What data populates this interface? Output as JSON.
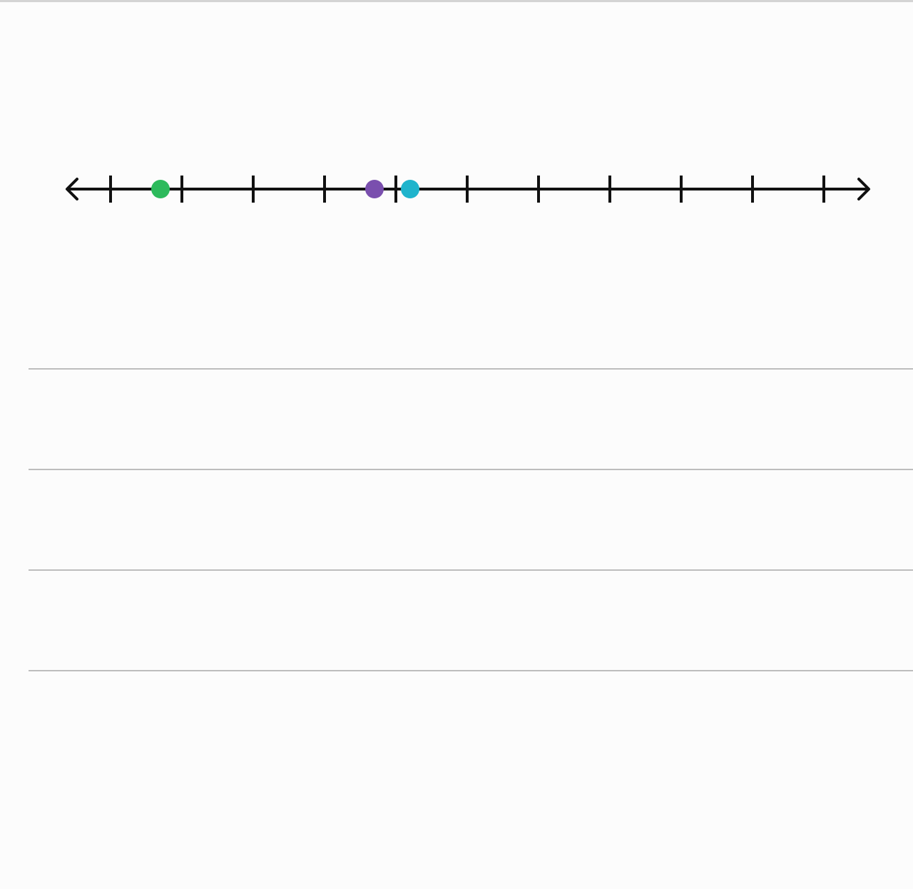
{
  "number_line": {
    "tick_count": 11,
    "tick_spacing_units": 1,
    "axis_color": "#111111",
    "has_left_arrow": true,
    "has_right_arrow": true,
    "tick_labels_visible": false
  },
  "points": [
    {
      "name": "green-point",
      "color": "#2dba5c",
      "position_in_ticks": 0.7
    },
    {
      "name": "purple-point",
      "color": "#7a4fae",
      "position_in_ticks": 3.7
    },
    {
      "name": "cyan-point",
      "color": "#1fb4cc",
      "position_in_ticks": 4.2
    }
  ],
  "answer_lines": {
    "count": 4,
    "color": "#bdbdbd"
  }
}
